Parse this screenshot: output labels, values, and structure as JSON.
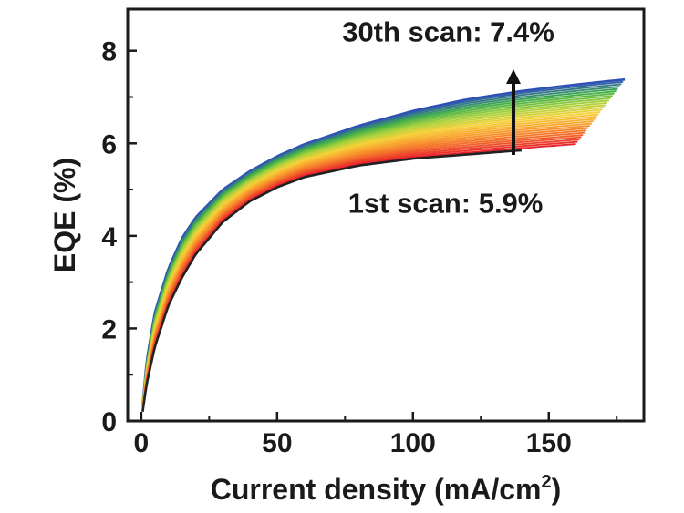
{
  "chart_data": {
    "type": "line",
    "xlabel": "Current density (mA/cm",
    "xlabel_sup": "2",
    "xlabel_end": ")",
    "ylabel": "EQE (%)",
    "xlim": [
      -5,
      185
    ],
    "ylim": [
      0,
      8.9
    ],
    "xticks": [
      0,
      50,
      100,
      150
    ],
    "yticks": [
      0,
      2,
      4,
      6,
      8
    ],
    "grid": false,
    "legend": "none",
    "series_count": 30,
    "first_scan": {
      "x": [
        0.5,
        2,
        5,
        10,
        15,
        20,
        30,
        40,
        50,
        60,
        80,
        100,
        120,
        140
      ],
      "y": [
        0.2,
        0.8,
        1.6,
        2.5,
        3.1,
        3.6,
        4.3,
        4.75,
        5.05,
        5.27,
        5.52,
        5.67,
        5.76,
        5.85
      ],
      "color": "#222222"
    },
    "last_scan": {
      "x": [
        0.5,
        2,
        5,
        10,
        15,
        20,
        30,
        40,
        50,
        60,
        80,
        100,
        120,
        140,
        160,
        178
      ],
      "y": [
        0.35,
        1.3,
        2.35,
        3.3,
        3.95,
        4.4,
        5.0,
        5.4,
        5.72,
        5.98,
        6.38,
        6.7,
        6.95,
        7.13,
        7.27,
        7.38
      ],
      "color": "#2d4fb8"
    },
    "end_x_first_color": 160,
    "palette": [
      "#e8232b",
      "#f26a2a",
      "#f9a12e",
      "#f5d13a",
      "#a8d23c",
      "#3fae49",
      "#2d4fb8"
    ],
    "annotations": [
      {
        "text": "30th scan: 7.4%",
        "at": [
          113,
          8.2
        ]
      },
      {
        "text": "1st scan: 5.9%",
        "at": [
          112,
          4.5
        ]
      }
    ],
    "arrow": {
      "x": 137,
      "from": 5.75,
      "to": 7.6
    }
  }
}
